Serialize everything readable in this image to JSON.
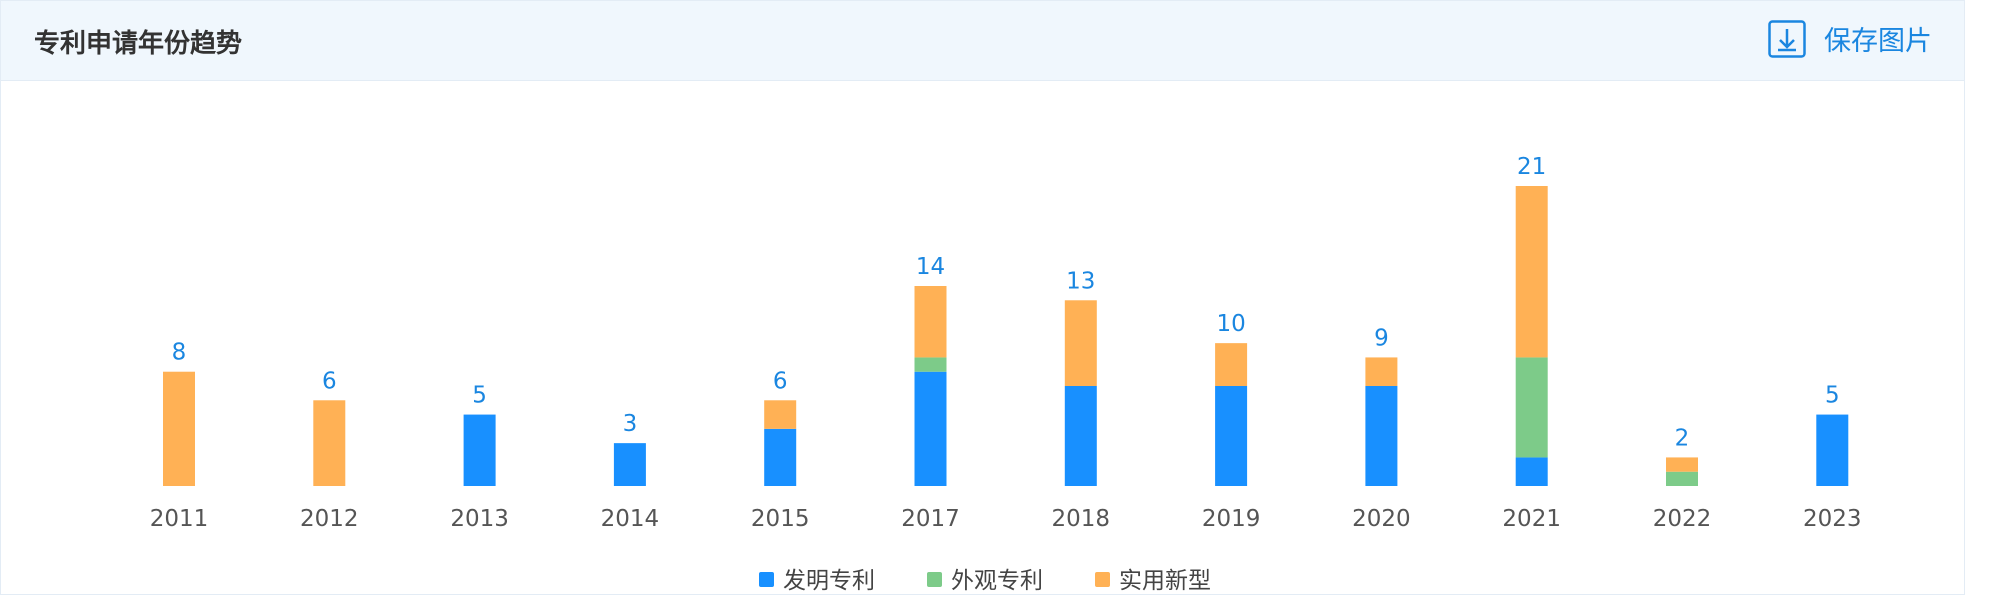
{
  "header": {
    "title": "专利申请年份趋势",
    "button": "保存图片"
  },
  "chart_data": {
    "type": "stacked-bar",
    "categories": [
      "2011",
      "2012",
      "2013",
      "2014",
      "2015",
      "2017",
      "2018",
      "2019",
      "2020",
      "2021",
      "2022",
      "2023"
    ],
    "series": [
      {
        "name": "发明专利",
        "color": "#1890ff",
        "values": [
          0,
          0,
          5,
          3,
          4,
          8,
          7,
          7,
          7,
          2,
          0,
          5
        ]
      },
      {
        "name": "外观专利",
        "color": "#7dcb89",
        "values": [
          0,
          0,
          0,
          0,
          0,
          1,
          0,
          0,
          0,
          7,
          1,
          0
        ]
      },
      {
        "name": "实用新型",
        "color": "#ffb155",
        "values": [
          8,
          6,
          0,
          0,
          2,
          5,
          6,
          3,
          2,
          12,
          1,
          0
        ]
      }
    ],
    "totals": [
      8,
      6,
      5,
      3,
      6,
      14,
      13,
      10,
      9,
      21,
      2,
      5
    ]
  }
}
